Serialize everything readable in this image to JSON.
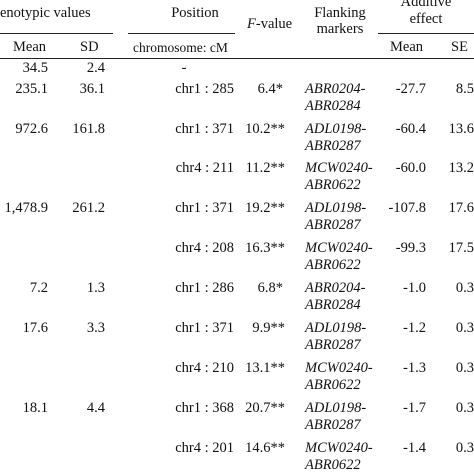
{
  "header": {
    "phenotypic": "enotypic values",
    "mean": "Mean",
    "sd": "SD",
    "position": "Position",
    "position_sub": "chromosome: cM",
    "fvalue_italic": "F",
    "fvalue_rest": "-value",
    "flanking_line1": "Flanking",
    "flanking_line2": "markers",
    "additive_line1": "Additive",
    "additive_line2": "effect",
    "add_mean": "Mean",
    "add_se": "SE"
  },
  "rows": [
    {
      "mean": "34.5",
      "sd": "2.4",
      "position": "-",
      "fvalue": "",
      "marker1": "",
      "marker2": "",
      "add_mean": "",
      "add_se": ""
    },
    {
      "mean": "235.1",
      "sd": "36.1",
      "position": "chr1 : 285",
      "fvalue": "6.4*",
      "marker1": "ABR0204-",
      "marker2": "ABR0284",
      "add_mean": "-27.7",
      "add_se": "8.5"
    },
    {
      "mean": "972.6",
      "sd": "161.8",
      "position": "chr1 : 371",
      "fvalue": "10.2**",
      "marker1": "ADL0198-",
      "marker2": "ABR0287",
      "add_mean": "-60.4",
      "add_se": "13.6"
    },
    {
      "mean": "",
      "sd": "",
      "position": "chr4 : 211",
      "fvalue": "11.2**",
      "marker1": "MCW0240-",
      "marker2": "ABR0622",
      "add_mean": "-60.0",
      "add_se": "13.2"
    },
    {
      "mean": "1,478.9",
      "sd": "261.2",
      "position": "chr1 : 371",
      "fvalue": "19.2**",
      "marker1": "ADL0198-",
      "marker2": "ABR0287",
      "add_mean": "-107.8",
      "add_se": "17.6"
    },
    {
      "mean": "",
      "sd": "",
      "position": "chr4 : 208",
      "fvalue": "16.3**",
      "marker1": "MCW0240-",
      "marker2": "ABR0622",
      "add_mean": "-99.3",
      "add_se": "17.5"
    },
    {
      "mean": "7.2",
      "sd": "1.3",
      "position": "chr1 : 286",
      "fvalue": "6.8*",
      "marker1": "ABR0204-",
      "marker2": "ABR0284",
      "add_mean": "-1.0",
      "add_se": "0.3"
    },
    {
      "mean": "17.6",
      "sd": "3.3",
      "position": "chr1 : 371",
      "fvalue": "9.9**",
      "marker1": "ADL0198-",
      "marker2": "ABR0287",
      "add_mean": "-1.2",
      "add_se": "0.3"
    },
    {
      "mean": "",
      "sd": "",
      "position": "chr4 : 210",
      "fvalue": "13.1**",
      "marker1": "MCW0240-",
      "marker2": "ABR0622",
      "add_mean": "-1.3",
      "add_se": "0.3"
    },
    {
      "mean": "18.1",
      "sd": "4.4",
      "position": "chr1 : 368",
      "fvalue": "20.7**",
      "marker1": "ADL0198-",
      "marker2": "ABR0287",
      "add_mean": "-1.7",
      "add_se": "0.3"
    },
    {
      "mean": "",
      "sd": "",
      "position": "chr4 : 201",
      "fvalue": "14.6**",
      "marker1": "MCW0240-",
      "marker2": "ABR0622",
      "add_mean": "-1.4",
      "add_se": "0.3"
    }
  ]
}
